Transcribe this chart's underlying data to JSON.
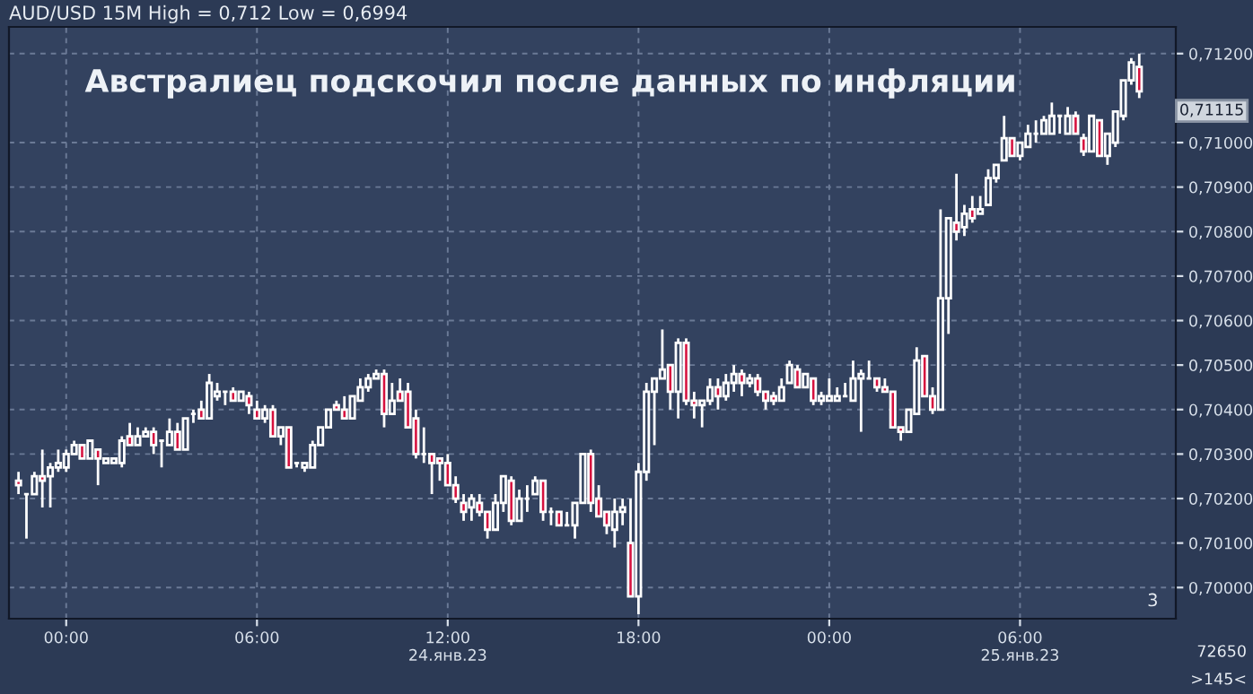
{
  "chart_data": {
    "type": "candlestick",
    "title": "AUD/USD 15M High = 0,712 Low = 0,6994",
    "subtitle": "Австралиец подскочил после данных по инфляции",
    "colors": [
      "#d6103e",
      "#ffffff",
      "#ffffff",
      "#d6103e",
      "#ffffff",
      "#ffffff",
      "#ffffff",
      "#ffffff",
      "#d6103e",
      "#ffffff",
      "#d6103e",
      "#ffffff",
      "#ffffff",
      "#ffffff",
      "#d6103e",
      "#ffffff",
      "#ffffff",
      "#d6103e",
      "#ffffff",
      "#ffffff",
      "#d6103e",
      "#ffffff",
      "#ffffff",
      "#d6103e",
      "#ffffff",
      "#ffffff",
      "#ffffff",
      "#d6103e",
      "#ffffff",
      "#d6103e",
      "#d6103e",
      "#ffffff",
      "#d6103e",
      "#ffffff",
      "#d6103e",
      "#ffffff",
      "#ffffff",
      "#ffffff",
      "#ffffff",
      "#ffffff",
      "#d6103e",
      "#d6103e",
      "#ffffff",
      "#ffffff",
      "#ffffff",
      "#ffffff",
      "#d6103e",
      "#ffffff",
      "#d6103e",
      "#d6103e",
      "#d6103e",
      "#ffffff",
      "#d6103e",
      "#d6103e",
      "#d6103e",
      "#d6103e",
      "#d6103e",
      "#ffffff",
      "#d6103e",
      "#d6103e",
      "#ffffff",
      "#ffffff",
      "#d6103e",
      "#ffffff",
      "#ffffff",
      "#ffffff",
      "#d6103e",
      "#ffffff",
      "#d6103e",
      "#ffffff",
      "#ffffff",
      "#ffffff",
      "#d6103e",
      "#d6103e",
      "#d6103e",
      "#ffffff",
      "#ffffff",
      "#d6103e",
      "#ffffff",
      "#ffffff",
      "#ffffff",
      "#ffffff",
      "#d6103e",
      "#ffffff",
      "#d6103e",
      "#d6103e",
      "#ffffff",
      "#ffffff",
      "#d6103e",
      "#ffffff",
      "#ffffff",
      "#d6103e",
      "#ffffff",
      "#d6103e",
      "#d6103e",
      "#d6103e",
      "#ffffff",
      "#ffffff",
      "#d6103e",
      "#ffffff",
      "#d6103e",
      "#ffffff",
      "#ffffff",
      "#ffffff",
      "#ffffff",
      "#ffffff",
      "#ffffff",
      "#ffffff",
      "#d6103e",
      "#d6103e",
      "#d6103e",
      "#d6103e",
      "#ffffff",
      "#ffffff",
      "#d6103e",
      "#d6103e",
      "#ffffff",
      "#ffffff",
      "#d6103e",
      "#ffffff",
      "#d6103e",
      "#ffffff",
      "#ffffff",
      "#ffffff",
      "#ffffff",
      "#d6103e",
      "#ffffff",
      "#ffffff",
      "#ffffff",
      "#ffffff",
      "#ffffff",
      "#ffffff",
      "#ffffff",
      "#d6103e",
      "#d6103e",
      "#ffffff",
      "#d6103e",
      "#ffffff",
      "#ffffff",
      "#ffffff",
      "#ffffff",
      "#d6103e"
    ],
    "x": [
      -1.5,
      -1.25,
      -1,
      -0.75,
      -0.5,
      -0.25,
      0,
      0.25,
      0.5,
      0.75,
      1,
      1.25,
      1.5,
      1.75,
      2,
      2.25,
      2.5,
      2.75,
      3,
      3.25,
      3.5,
      3.75,
      4,
      4.25,
      4.5,
      4.75,
      5,
      5.25,
      5.5,
      5.75,
      6,
      6.25,
      6.5,
      6.75,
      7,
      7.25,
      7.5,
      7.75,
      8,
      8.25,
      8.5,
      8.75,
      9,
      9.25,
      9.5,
      9.75,
      10,
      10.25,
      10.5,
      10.75,
      11,
      11.25,
      11.5,
      11.75,
      12,
      12.25,
      12.5,
      12.75,
      13,
      13.25,
      13.5,
      13.75,
      14,
      14.25,
      14.5,
      14.75,
      15,
      15.25,
      15.5,
      15.75,
      16,
      16.25,
      16.5,
      16.75,
      17,
      17.25,
      17.5,
      17.75,
      18,
      18.25,
      18.5,
      18.75,
      19,
      19.25,
      19.5,
      19.75,
      20,
      20.25,
      20.5,
      20.75,
      21,
      21.25,
      21.5,
      21.75,
      22,
      22.25,
      22.5,
      22.75,
      23,
      23.25,
      23.5,
      23.75,
      24,
      24.25,
      24.5,
      24.75,
      25,
      25.25,
      25.5,
      25.75,
      26,
      26.25,
      26.5,
      26.75,
      27,
      27.25,
      27.5,
      27.75,
      28,
      28.25,
      28.5,
      28.75,
      29,
      29.25,
      29.5,
      29.75,
      30,
      30.25,
      30.5,
      30.75,
      31,
      31.25,
      31.5,
      31.75,
      32,
      32.25,
      32.5,
      32.75,
      33,
      33.25,
      33.5,
      33.75
    ],
    "ohlc": [
      [
        0.7024,
        0.7026,
        0.7021,
        0.7023
      ],
      [
        0.7021,
        0.7021,
        0.7011,
        0.7021
      ],
      [
        0.7021,
        0.7026,
        0.7021,
        0.7025
      ],
      [
        0.7025,
        0.7031,
        0.7018,
        0.7024
      ],
      [
        0.7025,
        0.7028,
        0.7018,
        0.7027
      ],
      [
        0.7027,
        0.7031,
        0.7026,
        0.7028
      ],
      [
        0.7027,
        0.7031,
        0.7026,
        0.703
      ],
      [
        0.703,
        0.7033,
        0.703,
        0.7032
      ],
      [
        0.7032,
        0.7032,
        0.7029,
        0.7029
      ],
      [
        0.7029,
        0.7033,
        0.7029,
        0.7033
      ],
      [
        0.7031,
        0.7031,
        0.7023,
        0.7029
      ],
      [
        0.7028,
        0.7029,
        0.7028,
        0.7029
      ],
      [
        0.7028,
        0.7029,
        0.7028,
        0.7029
      ],
      [
        0.7028,
        0.7034,
        0.7027,
        0.7033
      ],
      [
        0.7034,
        0.7037,
        0.7032,
        0.7032
      ],
      [
        0.7032,
        0.7036,
        0.7032,
        0.7034
      ],
      [
        0.7034,
        0.7036,
        0.7034,
        0.7035
      ],
      [
        0.7035,
        0.7036,
        0.703,
        0.7032
      ],
      [
        0.7033,
        0.7033,
        0.7027,
        0.7033
      ],
      [
        0.7032,
        0.7038,
        0.7032,
        0.7035
      ],
      [
        0.7035,
        0.7037,
        0.7031,
        0.7031
      ],
      [
        0.7031,
        0.7038,
        0.7031,
        0.7038
      ],
      [
        0.7039,
        0.704,
        0.7037,
        0.7039
      ],
      [
        0.704,
        0.7042,
        0.7038,
        0.7038
      ],
      [
        0.7038,
        0.7048,
        0.7038,
        0.7046
      ],
      [
        0.7043,
        0.7046,
        0.7042,
        0.7044
      ],
      [
        0.7044,
        0.7044,
        0.7041,
        0.7044
      ],
      [
        0.7044,
        0.7045,
        0.7042,
        0.7042
      ],
      [
        0.7042,
        0.7044,
        0.7042,
        0.7044
      ],
      [
        0.7043,
        0.7044,
        0.7039,
        0.7041
      ],
      [
        0.704,
        0.7042,
        0.7038,
        0.7038
      ],
      [
        0.7038,
        0.7041,
        0.7037,
        0.704
      ],
      [
        0.704,
        0.7041,
        0.7034,
        0.7034
      ],
      [
        0.7034,
        0.7036,
        0.7032,
        0.7036
      ],
      [
        0.7036,
        0.7036,
        0.7027,
        0.7027
      ],
      [
        0.7028,
        0.7028,
        0.7027,
        0.7028
      ],
      [
        0.7027,
        0.7028,
        0.7026,
        0.7028
      ],
      [
        0.7027,
        0.7033,
        0.7027,
        0.7032
      ],
      [
        0.7032,
        0.7036,
        0.7032,
        0.7036
      ],
      [
        0.7036,
        0.704,
        0.7036,
        0.704
      ],
      [
        0.7041,
        0.7042,
        0.704,
        0.704
      ],
      [
        0.704,
        0.7043,
        0.7038,
        0.7038
      ],
      [
        0.7038,
        0.7043,
        0.7038,
        0.7043
      ],
      [
        0.7042,
        0.7047,
        0.7042,
        0.7045
      ],
      [
        0.7045,
        0.7048,
        0.7044,
        0.7047
      ],
      [
        0.7047,
        0.7049,
        0.7047,
        0.7048
      ],
      [
        0.7048,
        0.7049,
        0.7036,
        0.7039
      ],
      [
        0.7039,
        0.7046,
        0.7039,
        0.7042
      ],
      [
        0.7044,
        0.7047,
        0.7042,
        0.7042
      ],
      [
        0.7044,
        0.7046,
        0.7036,
        0.7036
      ],
      [
        0.7038,
        0.704,
        0.7029,
        0.703
      ],
      [
        0.703,
        0.7036,
        0.7028,
        0.703
      ],
      [
        0.703,
        0.703,
        0.7021,
        0.7028
      ],
      [
        0.7029,
        0.7029,
        0.7024,
        0.7028
      ],
      [
        0.7028,
        0.703,
        0.7023,
        0.7023
      ],
      [
        0.7023,
        0.7025,
        0.7019,
        0.702
      ],
      [
        0.7019,
        0.7021,
        0.7015,
        0.7017
      ],
      [
        0.7018,
        0.7021,
        0.7015,
        0.702
      ],
      [
        0.7019,
        0.7021,
        0.7016,
        0.7017
      ],
      [
        0.7017,
        0.7017,
        0.7011,
        0.7013
      ],
      [
        0.7013,
        0.7021,
        0.7013,
        0.7019
      ],
      [
        0.7019,
        0.7025,
        0.7017,
        0.7025
      ],
      [
        0.7024,
        0.7025,
        0.7014,
        0.7015
      ],
      [
        0.7015,
        0.7022,
        0.7015,
        0.702
      ],
      [
        0.702,
        0.7023,
        0.7017,
        0.702
      ],
      [
        0.7021,
        0.7025,
        0.7021,
        0.7024
      ],
      [
        0.7024,
        0.7024,
        0.7015,
        0.7017
      ],
      [
        0.7017,
        0.7018,
        0.7014,
        0.7017
      ],
      [
        0.7017,
        0.7017,
        0.7014,
        0.7014
      ],
      [
        0.7014,
        0.7017,
        0.7014,
        0.7014
      ],
      [
        0.7014,
        0.7019,
        0.7011,
        0.7019
      ],
      [
        0.7019,
        0.703,
        0.7019,
        0.703
      ],
      [
        0.703,
        0.7031,
        0.7017,
        0.7019
      ],
      [
        0.702,
        0.7023,
        0.7016,
        0.7016
      ],
      [
        0.7017,
        0.7017,
        0.7012,
        0.7014
      ],
      [
        0.7013,
        0.702,
        0.7009,
        0.7017
      ],
      [
        0.7017,
        0.702,
        0.7014,
        0.7018
      ],
      [
        0.701,
        0.702,
        0.6998,
        0.6998
      ],
      [
        0.6998,
        0.7028,
        0.6994,
        0.7026
      ],
      [
        0.7026,
        0.7046,
        0.7024,
        0.7044
      ],
      [
        0.7044,
        0.7047,
        0.7032,
        0.7047
      ],
      [
        0.7047,
        0.7058,
        0.7047,
        0.7049
      ],
      [
        0.705,
        0.705,
        0.704,
        0.7044
      ],
      [
        0.7044,
        0.7056,
        0.7038,
        0.7055
      ],
      [
        0.7055,
        0.7056,
        0.7041,
        0.7042
      ],
      [
        0.7042,
        0.7044,
        0.7038,
        0.7041
      ],
      [
        0.7041,
        0.7042,
        0.7036,
        0.7042
      ],
      [
        0.7042,
        0.7047,
        0.7041,
        0.7045
      ],
      [
        0.7045,
        0.7047,
        0.704,
        0.7043
      ],
      [
        0.7043,
        0.7048,
        0.7042,
        0.7046
      ],
      [
        0.7046,
        0.705,
        0.7044,
        0.7048
      ],
      [
        0.7048,
        0.7049,
        0.7043,
        0.7046
      ],
      [
        0.7046,
        0.7048,
        0.7045,
        0.7047
      ],
      [
        0.7047,
        0.7048,
        0.7043,
        0.7044
      ],
      [
        0.7044,
        0.7044,
        0.704,
        0.7042
      ],
      [
        0.7043,
        0.7044,
        0.7041,
        0.7042
      ],
      [
        0.7042,
        0.7047,
        0.7042,
        0.7045
      ],
      [
        0.7046,
        0.7051,
        0.7046,
        0.705
      ],
      [
        0.7049,
        0.705,
        0.7045,
        0.7045
      ],
      [
        0.7045,
        0.7048,
        0.7045,
        0.7048
      ],
      [
        0.7047,
        0.7047,
        0.7041,
        0.7042
      ],
      [
        0.7042,
        0.7044,
        0.7041,
        0.7043
      ],
      [
        0.7042,
        0.7047,
        0.7042,
        0.7043
      ],
      [
        0.7042,
        0.7045,
        0.7042,
        0.7043
      ],
      [
        0.7043,
        0.7046,
        0.7043,
        0.7043
      ],
      [
        0.7042,
        0.7051,
        0.7042,
        0.7047
      ],
      [
        0.7047,
        0.7049,
        0.7035,
        0.7048
      ],
      [
        0.7047,
        0.7051,
        0.7047,
        0.7047
      ],
      [
        0.7047,
        0.7047,
        0.7044,
        0.7045
      ],
      [
        0.7045,
        0.7047,
        0.7044,
        0.7044
      ],
      [
        0.7044,
        0.7044,
        0.7036,
        0.7036
      ],
      [
        0.7036,
        0.7036,
        0.7033,
        0.7035
      ],
      [
        0.7035,
        0.704,
        0.7035,
        0.704
      ],
      [
        0.7039,
        0.7054,
        0.7039,
        0.7051
      ],
      [
        0.7052,
        0.7052,
        0.7043,
        0.7043
      ],
      [
        0.7043,
        0.7045,
        0.7039,
        0.704
      ],
      [
        0.704,
        0.7085,
        0.704,
        0.7065
      ],
      [
        0.7065,
        0.7083,
        0.7057,
        0.7083
      ],
      [
        0.7082,
        0.7093,
        0.7078,
        0.708
      ],
      [
        0.7081,
        0.7086,
        0.7079,
        0.7084
      ],
      [
        0.7085,
        0.7088,
        0.7082,
        0.7083
      ],
      [
        0.7084,
        0.7088,
        0.7084,
        0.7085
      ],
      [
        0.7086,
        0.7094,
        0.7086,
        0.7092
      ],
      [
        0.7092,
        0.7095,
        0.7091,
        0.7095
      ],
      [
        0.7096,
        0.7106,
        0.7096,
        0.7101
      ],
      [
        0.7101,
        0.7101,
        0.7097,
        0.7097
      ],
      [
        0.7097,
        0.71,
        0.7096,
        0.71
      ],
      [
        0.7099,
        0.7104,
        0.7099,
        0.7102
      ],
      [
        0.7102,
        0.7105,
        0.71,
        0.7102
      ],
      [
        0.7102,
        0.7106,
        0.7102,
        0.7105
      ],
      [
        0.7102,
        0.7109,
        0.7102,
        0.7106
      ],
      [
        0.7106,
        0.7106,
        0.7102,
        0.7106
      ],
      [
        0.7102,
        0.7108,
        0.7102,
        0.7106
      ],
      [
        0.7106,
        0.7107,
        0.7102,
        0.7102
      ],
      [
        0.7101,
        0.7102,
        0.7097,
        0.7098
      ],
      [
        0.7098,
        0.7106,
        0.7098,
        0.7106
      ],
      [
        0.7105,
        0.7105,
        0.7097,
        0.7097
      ],
      [
        0.7097,
        0.7102,
        0.7095,
        0.7102
      ],
      [
        0.71,
        0.7107,
        0.7099,
        0.7107
      ],
      [
        0.7106,
        0.7114,
        0.7105,
        0.7114
      ],
      [
        0.7114,
        0.7119,
        0.7113,
        0.7118
      ],
      [
        0.7117,
        0.712,
        0.711,
        0.71115
      ]
    ],
    "xlim": [
      -1.8,
      34.9
    ],
    "xticks": [
      {
        "value": 0,
        "label": "00:00"
      },
      {
        "value": 6,
        "label": "06:00"
      },
      {
        "value": 12,
        "label": "12:00\n24.янв.23"
      },
      {
        "value": 18,
        "label": "18:00"
      },
      {
        "value": 24,
        "label": "00:00"
      },
      {
        "value": 30,
        "label": "06:00\n25.янв.23"
      }
    ],
    "ylim": [
      0.6993,
      0.7126
    ],
    "yticks": [
      {
        "value": 0.7,
        "label": "0,70000"
      },
      {
        "value": 0.701,
        "label": "0,70100"
      },
      {
        "value": 0.702,
        "label": "0,70200"
      },
      {
        "value": 0.703,
        "label": "0,70300"
      },
      {
        "value": 0.704,
        "label": "0,70400"
      },
      {
        "value": 0.705,
        "label": "0,70500"
      },
      {
        "value": 0.706,
        "label": "0,70600"
      },
      {
        "value": 0.707,
        "label": "0,70700"
      },
      {
        "value": 0.708,
        "label": "0,70800"
      },
      {
        "value": 0.709,
        "label": "0,70900"
      },
      {
        "value": 0.71,
        "label": "0,71000"
      },
      {
        "value": 0.712,
        "label": "0,71200"
      }
    ],
    "grid": true,
    "annotations": [
      "0,71115",
      "3",
      "72650",
      ">145<"
    ]
  }
}
